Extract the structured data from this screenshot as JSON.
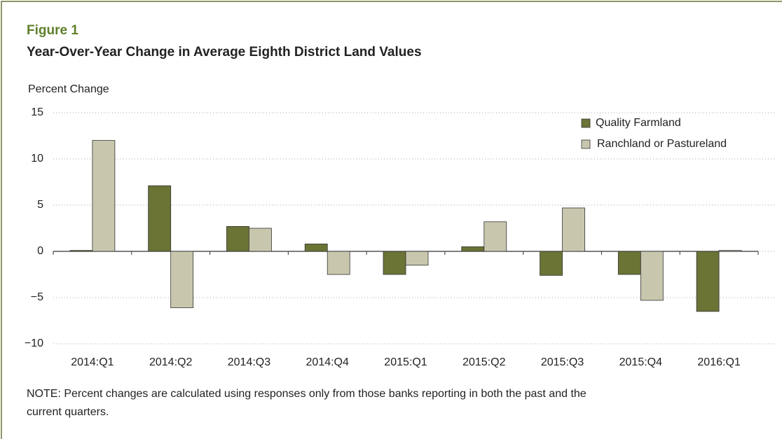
{
  "chart_data": {
    "type": "bar",
    "figure_label": "Figure 1",
    "title": "Year-Over-Year Change in Average Eighth District Land Values",
    "y_label": "Percent Change",
    "note": [
      "NOTE: Percent changes are calculated using responses only from those banks reporting in both the past and the",
      "current quarters."
    ],
    "categories": [
      "2014:Q1",
      "2014:Q2",
      "2014:Q3",
      "2014:Q4",
      "2015:Q1",
      "2015:Q2",
      "2015:Q3",
      "2015:Q4",
      "2016:Q1"
    ],
    "series": [
      {
        "name": "Quality Farmland",
        "color": "#6b7335",
        "values": [
          0.1,
          7.1,
          2.7,
          0.8,
          -2.5,
          0.5,
          -2.6,
          -2.5,
          -6.5
        ]
      },
      {
        "name": "Ranchland or Pastureland",
        "color": "#c8c6ad",
        "values": [
          12.0,
          -6.1,
          2.5,
          -2.5,
          -1.5,
          3.2,
          4.7,
          -5.3,
          0.1
        ]
      }
    ],
    "ylim": [
      -10,
      15
    ],
    "yticks": [
      {
        "value": -10,
        "label": "−10"
      },
      {
        "value": -5,
        "label": "−5"
      },
      0,
      5,
      10,
      15
    ],
    "grid": true,
    "legend": "top-right"
  }
}
